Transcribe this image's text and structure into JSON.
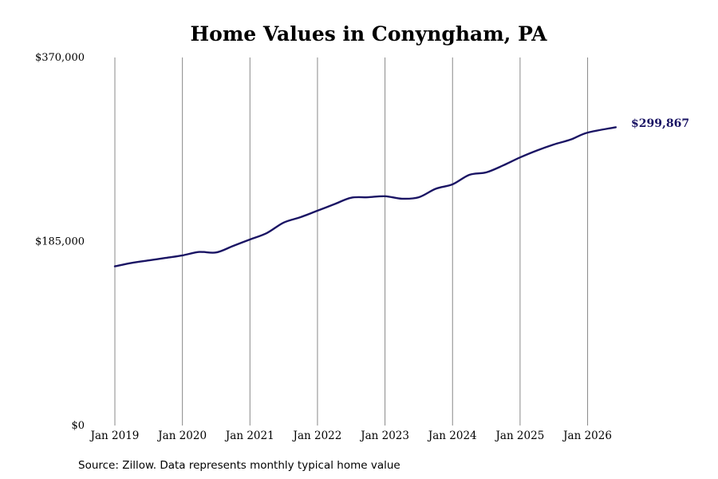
{
  "chart_data": {
    "type": "line",
    "title": "Home Values in Conyngham, PA",
    "source": "Source: Zillow. Data represents monthly typical home value",
    "xlabel": "",
    "ylabel": "",
    "ylim": [
      0,
      370000
    ],
    "y_ticks": [
      {
        "value": 0,
        "label": "$0"
      },
      {
        "value": 185000,
        "label": "$185,000"
      },
      {
        "value": 370000,
        "label": "$370,000"
      }
    ],
    "x_range": [
      "2019-01",
      "2026-06"
    ],
    "x_ticks": [
      {
        "date": "2019-01",
        "label": "Jan 2019"
      },
      {
        "date": "2020-01",
        "label": "Jan 2020"
      },
      {
        "date": "2021-01",
        "label": "Jan 2021"
      },
      {
        "date": "2022-01",
        "label": "Jan 2022"
      },
      {
        "date": "2023-01",
        "label": "Jan 2023"
      },
      {
        "date": "2024-01",
        "label": "Jan 2024"
      },
      {
        "date": "2025-01",
        "label": "Jan 2025"
      },
      {
        "date": "2026-01",
        "label": "Jan 2026"
      }
    ],
    "grid": "vertical",
    "line_color": "#1a1464",
    "end_label": "$299,867",
    "series": [
      {
        "points": [
          [
            "2019-01",
            160000
          ],
          [
            "2019-04",
            163500
          ],
          [
            "2019-07",
            166000
          ],
          [
            "2019-10",
            168500
          ],
          [
            "2020-01",
            171000
          ],
          [
            "2020-04",
            174500
          ],
          [
            "2020-07",
            174000
          ],
          [
            "2020-10",
            180500
          ],
          [
            "2021-01",
            187000
          ],
          [
            "2021-04",
            193500
          ],
          [
            "2021-07",
            204000
          ],
          [
            "2021-10",
            209500
          ],
          [
            "2022-01",
            216000
          ],
          [
            "2022-04",
            222500
          ],
          [
            "2022-07",
            229000
          ],
          [
            "2022-10",
            229500
          ],
          [
            "2023-01",
            230500
          ],
          [
            "2023-04",
            228000
          ],
          [
            "2023-07",
            229500
          ],
          [
            "2023-10",
            238000
          ],
          [
            "2024-01",
            242500
          ],
          [
            "2024-04",
            252000
          ],
          [
            "2024-07",
            254500
          ],
          [
            "2024-10",
            261500
          ],
          [
            "2025-01",
            269500
          ],
          [
            "2025-04",
            276500
          ],
          [
            "2025-07",
            282500
          ],
          [
            "2025-10",
            287500
          ],
          [
            "2026-01",
            294500
          ],
          [
            "2026-06",
            299867
          ]
        ]
      }
    ]
  }
}
